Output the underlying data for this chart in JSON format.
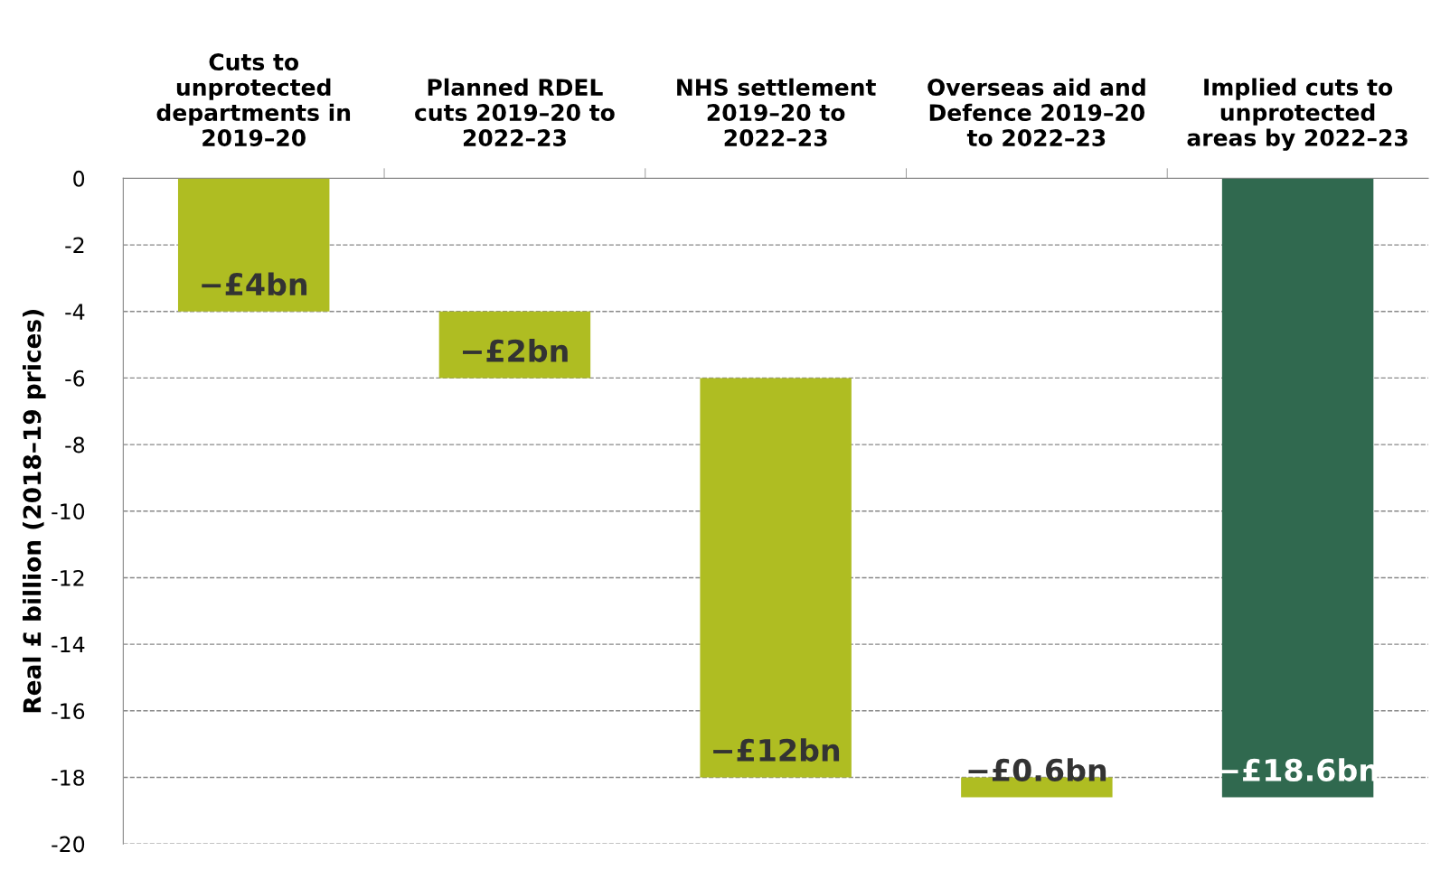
{
  "chart_data": {
    "type": "bar",
    "ylabel": "Real £ billion (2018–19 prices)",
    "categories": [
      "Cuts to\nunprotected\ndepartments in\n2019–20",
      "Planned RDEL\ncuts 2019–20 to\n2022–23",
      "NHS settlement\n2019–20 to\n2022–23",
      "Overseas aid and\nDefence 2019–20\nto 2022–23",
      "Implied cuts to\nunprotected\nareas by 2022–23"
    ],
    "values": [
      -4,
      -2,
      -12,
      -0.6,
      -18.6
    ],
    "base": [
      0,
      -4,
      -6,
      -18,
      0
    ],
    "colors": [
      "#afbd22",
      "#afbd22",
      "#afbd22",
      "#afbd22",
      "#30694f"
    ],
    "value_labels": [
      "−£4bn",
      "−£2bn",
      "−£12bn",
      "−£0.6bn",
      "−£18.6bn"
    ],
    "ylim": [
      -20,
      0
    ],
    "yticks": [
      0,
      -2,
      -4,
      -6,
      -8,
      -10,
      -12,
      -14,
      -16,
      -18,
      -20
    ],
    "grid": "y"
  }
}
